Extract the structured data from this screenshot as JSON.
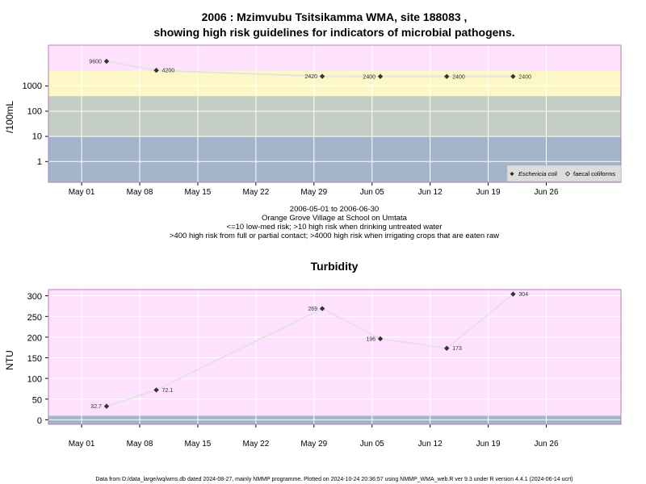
{
  "title_line1": "2006 : Mzimvubu Tsitsikamma WMA, site 188083 ,",
  "title_line2": "showing high risk guidelines for indicators of microbial pathogens.",
  "subtitle_lines": [
    "2006-05-01 to 2006-06-30",
    "Orange Grove Village at School on Umtata",
    "<=10 low-med risk; >10 high risk when drinking untreated water",
    ">400 high risk from full or partial contact; >4000 high risk when irrigating crops that are eaten raw"
  ],
  "footer": "Data from D:/data_large/wq/wms.db dated 2024-08-27, mainly NMMP programme. Plotted on 2024-10-24 20:36:57 using NMMP_WMA_web.R ver 9.3 under R version 4.4.1 (2024-06-14 ucrt)",
  "colors": {
    "band_low": "#a3b4cb",
    "band_med": "#c4cec4",
    "band_contact": "#fdf6c5",
    "band_high": "#fee1fd",
    "frame": "#b27fb2",
    "grid": "#ffffff",
    "trend_line": "#e3e3e3",
    "point": "#333333"
  },
  "chart_data": [
    {
      "type": "scatter",
      "y_scale": "log10",
      "ylabel": "/100mL",
      "x_tick_labels": [
        "May 01",
        "May 08",
        "May 15",
        "May 22",
        "May 29",
        "Jun 05",
        "Jun 12",
        "Jun 19",
        "Jun 26"
      ],
      "x_ticks": [
        "2006-05-01",
        "2006-05-08",
        "2006-05-15",
        "2006-05-22",
        "2006-05-29",
        "2006-06-05",
        "2006-06-12",
        "2006-06-19",
        "2006-06-26"
      ],
      "xlim": [
        "2006-04-27",
        "2006-07-05"
      ],
      "y_tick_labels": [
        "1",
        "10",
        "100",
        "1000"
      ],
      "y_ticks": [
        1,
        10,
        100,
        1000
      ],
      "ylim": [
        0.15,
        42000
      ],
      "bands": [
        {
          "from": 0.15,
          "to": 10,
          "color_key": "band_low"
        },
        {
          "from": 10,
          "to": 400,
          "color_key": "band_med"
        },
        {
          "from": 400,
          "to": 4000,
          "color_key": "band_contact"
        },
        {
          "from": 4000,
          "to": 42000,
          "color_key": "band_high"
        }
      ],
      "series": [
        {
          "name": "Eschericia coli",
          "marker": "filled-diamond",
          "points": [
            {
              "x": "2006-05-04",
              "y": 9600,
              "label": "9600",
              "label_side": "left"
            },
            {
              "x": "2006-05-10",
              "y": 4200,
              "label": "4200",
              "label_side": "right"
            },
            {
              "x": "2006-05-30",
              "y": 2420,
              "label": "2420",
              "label_side": "left"
            },
            {
              "x": "2006-06-06",
              "y": 2400,
              "label": "2400",
              "label_side": "left"
            },
            {
              "x": "2006-06-14",
              "y": 2400,
              "label": "2400",
              "label_side": "right"
            },
            {
              "x": "2006-06-22",
              "y": 2400,
              "label": "2400",
              "label_side": "right"
            }
          ]
        }
      ],
      "legend": {
        "position": "bottom-right",
        "entries": [
          {
            "label": "Eschericia coli",
            "marker": "filled-diamond",
            "italic": true
          },
          {
            "label": "faecal coliforms",
            "marker": "open-diamond",
            "italic": false
          }
        ]
      }
    },
    {
      "type": "scatter",
      "title": "Turbidity",
      "ylabel": "NTU",
      "x_tick_labels": [
        "May 01",
        "May 08",
        "May 15",
        "May 22",
        "May 29",
        "Jun 05",
        "Jun 12",
        "Jun 19",
        "Jun 26"
      ],
      "x_ticks": [
        "2006-05-01",
        "2006-05-08",
        "2006-05-15",
        "2006-05-22",
        "2006-05-29",
        "2006-06-05",
        "2006-06-12",
        "2006-06-19",
        "2006-06-26"
      ],
      "xlim": [
        "2006-04-27",
        "2006-07-05"
      ],
      "y_tick_labels": [
        "0",
        "50",
        "100",
        "150",
        "200",
        "250",
        "300"
      ],
      "y_ticks": [
        0,
        50,
        100,
        150,
        200,
        250,
        300
      ],
      "ylim": [
        -11,
        315
      ],
      "bands": [
        {
          "from": -11,
          "to": 10,
          "color_key": "band_low"
        },
        {
          "from": 10,
          "to": 315,
          "color_key": "band_high"
        }
      ],
      "series": [
        {
          "marker": "filled-diamond",
          "points": [
            {
              "x": "2006-05-04",
              "y": 32.7,
              "label": "32.7",
              "label_side": "left"
            },
            {
              "x": "2006-05-10",
              "y": 72.1,
              "label": "72.1",
              "label_side": "right"
            },
            {
              "x": "2006-05-30",
              "y": 269,
              "label": "269",
              "label_side": "left"
            },
            {
              "x": "2006-06-06",
              "y": 196,
              "label": "196",
              "label_side": "left"
            },
            {
              "x": "2006-06-14",
              "y": 173,
              "label": "173",
              "label_side": "right"
            },
            {
              "x": "2006-06-22",
              "y": 304,
              "label": "304",
              "label_side": "right"
            }
          ]
        }
      ]
    }
  ]
}
